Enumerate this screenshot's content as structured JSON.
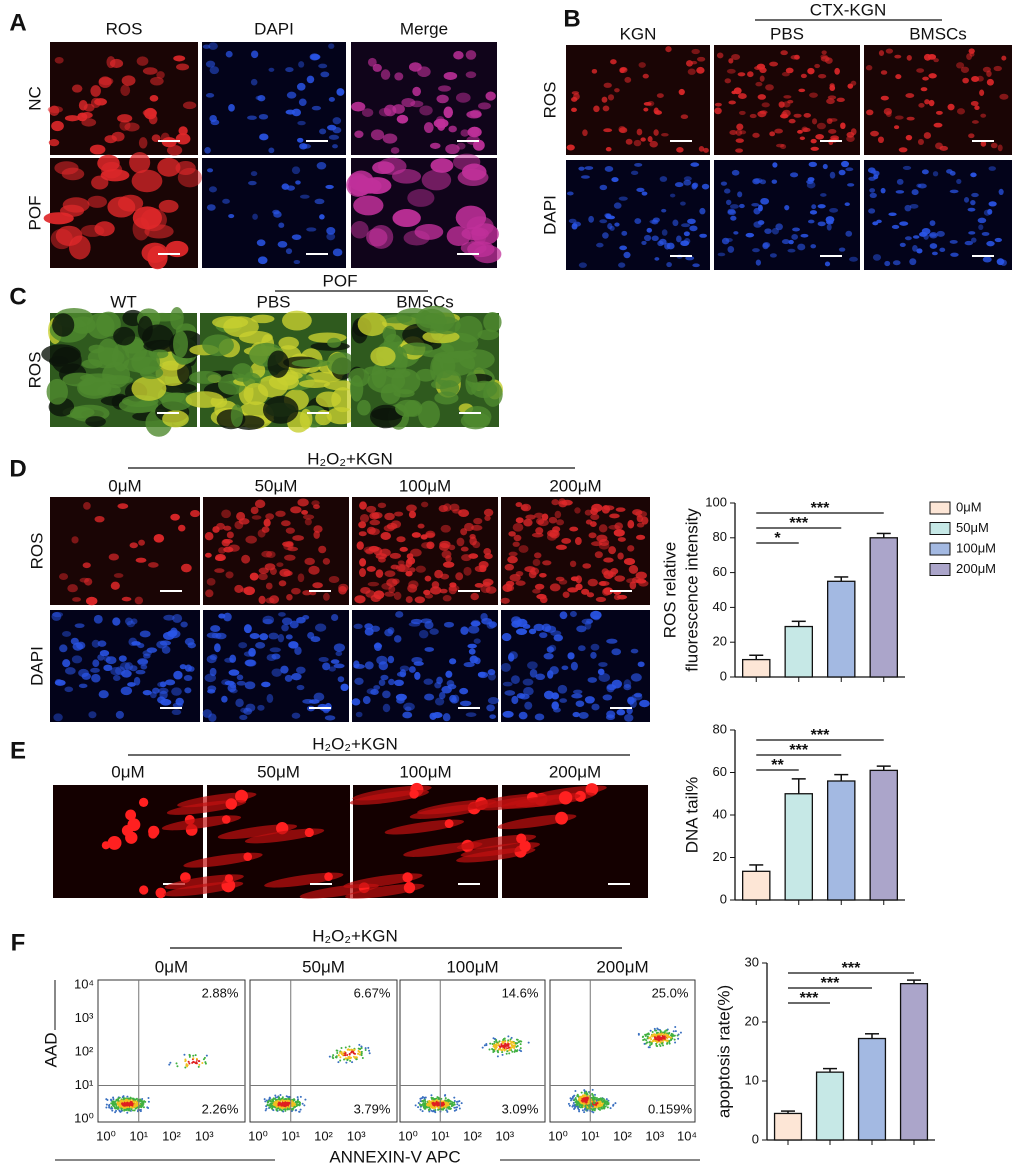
{
  "panel_a": {
    "label": "A",
    "columns": [
      "ROS",
      "DAPI",
      "Merge"
    ],
    "rows": [
      "NC",
      "POF"
    ]
  },
  "panel_b": {
    "label": "B",
    "group": "CTX-KGN",
    "columns": [
      "KGN",
      "PBS",
      "BMSCs"
    ],
    "rows": [
      "ROS",
      "DAPI"
    ]
  },
  "panel_c": {
    "label": "C",
    "group": "POF",
    "columns": [
      "WT",
      "PBS",
      "BMSCs"
    ],
    "rows": [
      "ROS"
    ]
  },
  "panel_d": {
    "label": "D",
    "group": "H₂O₂+KGN",
    "columns": [
      "0μM",
      "50μM",
      "100μM",
      "200μM"
    ],
    "rows": [
      "ROS",
      "DAPI"
    ]
  },
  "panel_e": {
    "label": "E",
    "group": "H₂O₂+KGN",
    "columns": [
      "0μM",
      "50μM",
      "100μM",
      "200μM"
    ]
  },
  "panel_f": {
    "label": "F",
    "group": "H₂O₂+KGN",
    "columns": [
      "0μM",
      "50μM",
      "100μM",
      "200μM"
    ],
    "y_axis_label": "AAD",
    "x_axis_label": "ANNEXIN-V APC",
    "axis_ticks": [
      "10⁰",
      "10¹",
      "10²",
      "10³",
      "10⁴"
    ],
    "upper_right": [
      "2.88%",
      "6.67%",
      "14.6%",
      "25.0%"
    ],
    "lower_right": [
      "2.26%",
      "3.79%",
      "3.09%",
      "0.159%"
    ]
  },
  "chart_data": [
    {
      "type": "bar",
      "ylabel": [
        "ROS relative",
        "fluorescence intensity"
      ],
      "categories": [
        null,
        null,
        null,
        null
      ],
      "values": [
        10,
        29,
        55,
        80
      ],
      "errors": [
        2.5,
        3,
        2.5,
        2.5
      ],
      "colors": [
        "#fde6d6",
        "#c6e8e6",
        "#a3b9e2",
        "#aba5ca"
      ],
      "ylim": [
        0,
        100
      ],
      "yticks": [
        0,
        20,
        40,
        60,
        80,
        100
      ],
      "significance": [
        "*",
        "***",
        "***"
      ],
      "legend": [
        "0μM",
        "50μM",
        "100μM",
        "200μM"
      ]
    },
    {
      "type": "bar",
      "ylabel": [
        "DNA tail%"
      ],
      "categories": [
        null,
        null,
        null,
        null
      ],
      "values": [
        13.5,
        50,
        56,
        61
      ],
      "errors": [
        3,
        7,
        3,
        2
      ],
      "colors": [
        "#fde6d6",
        "#c6e8e6",
        "#a3b9e2",
        "#aba5ca"
      ],
      "ylim": [
        0,
        80
      ],
      "yticks": [
        0,
        20,
        40,
        60,
        80
      ],
      "significance": [
        "**",
        "***",
        "***"
      ]
    },
    {
      "type": "bar",
      "ylabel": [
        "apoptosis  rate(%)"
      ],
      "categories": [
        null,
        null,
        null,
        null
      ],
      "values": [
        4.5,
        11.5,
        17.2,
        26.5
      ],
      "errors": [
        0.4,
        0.6,
        0.8,
        0.6
      ],
      "colors": [
        "#fde6d6",
        "#c6e8e6",
        "#a3b9e2",
        "#aba5ca"
      ],
      "ylim": [
        0,
        30
      ],
      "yticks": [
        0,
        10,
        20,
        30
      ],
      "significance": [
        "***",
        "***",
        "***"
      ]
    }
  ]
}
